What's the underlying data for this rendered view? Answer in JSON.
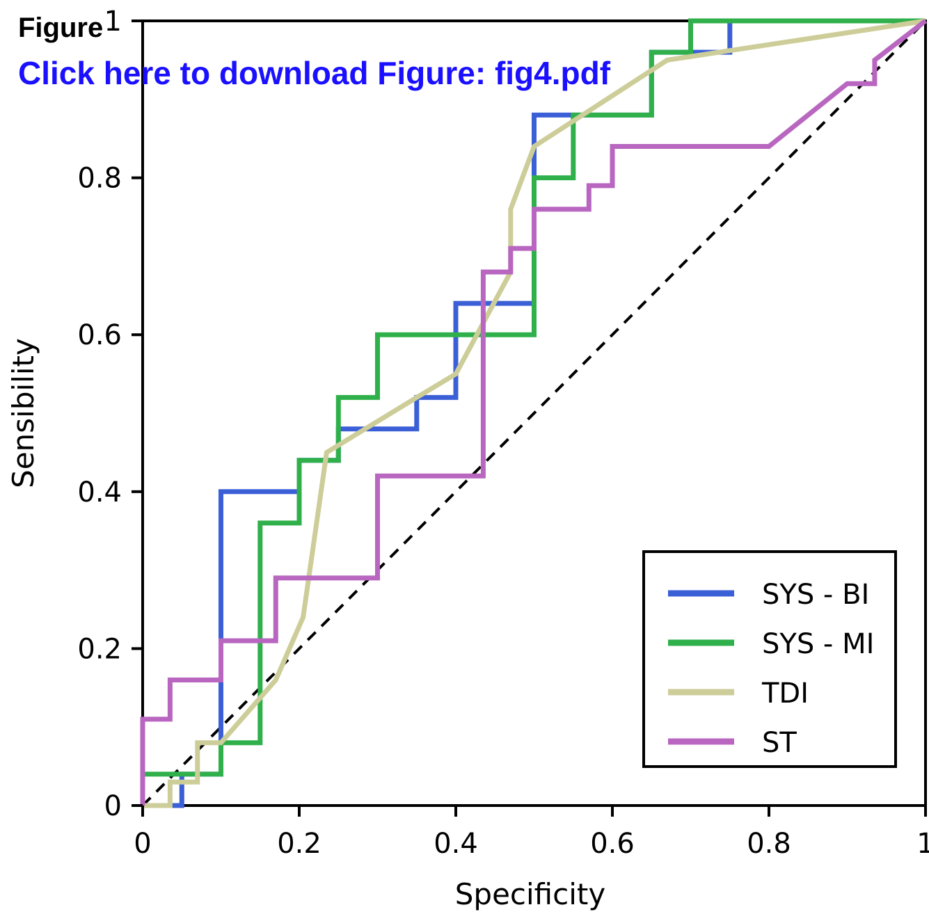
{
  "header": {
    "title": "Figure",
    "link": "Click here to download Figure: fig4.pdf"
  },
  "chart_data": {
    "type": "line",
    "title": "",
    "xlabel": "Specificity",
    "ylabel": "Sensibility",
    "xlim": [
      0,
      1
    ],
    "ylim": [
      0,
      1
    ],
    "xticks": [
      "0",
      "0.2",
      "0.4",
      "0.6",
      "0.8",
      "1"
    ],
    "yticks": [
      "0",
      "0.2",
      "0.4",
      "0.6",
      "0.8",
      "1"
    ],
    "grid": false,
    "legend_position": "bottom-right",
    "reference_line": {
      "style": "dashed",
      "color": "#000000",
      "x": [
        0,
        1
      ],
      "y": [
        0,
        1
      ]
    },
    "series": [
      {
        "name": "SYS - BI",
        "color": "#3b5fd6",
        "x": [
          0,
          0.05,
          0.05,
          0.1,
          0.1,
          0.2,
          0.2,
          0.25,
          0.25,
          0.35,
          0.35,
          0.4,
          0.4,
          0.5,
          0.5,
          0.55,
          0.55,
          0.65,
          0.65,
          0.75,
          0.75,
          1
        ],
        "y": [
          0,
          0,
          0.04,
          0.04,
          0.4,
          0.4,
          0.44,
          0.44,
          0.48,
          0.48,
          0.52,
          0.52,
          0.64,
          0.64,
          0.88,
          0.88,
          0.88,
          0.88,
          0.96,
          0.96,
          1,
          1
        ]
      },
      {
        "name": "SYS - MI",
        "color": "#2fb04a",
        "x": [
          0,
          0,
          0.1,
          0.1,
          0.15,
          0.15,
          0.2,
          0.2,
          0.25,
          0.25,
          0.3,
          0.3,
          0.5,
          0.5,
          0.55,
          0.55,
          0.65,
          0.65,
          0.7,
          0.7,
          1
        ],
        "y": [
          0,
          0.04,
          0.04,
          0.08,
          0.08,
          0.36,
          0.36,
          0.44,
          0.44,
          0.52,
          0.52,
          0.6,
          0.6,
          0.8,
          0.8,
          0.88,
          0.88,
          0.96,
          0.96,
          1,
          1
        ]
      },
      {
        "name": "TDI",
        "color": "#cdcd99",
        "x": [
          0,
          0.035,
          0.035,
          0.07,
          0.07,
          0.1,
          0.17,
          0.205,
          0.235,
          0.35,
          0.4,
          0.47,
          0.47,
          0.5,
          0.67,
          1
        ],
        "y": [
          0,
          0,
          0.03,
          0.03,
          0.08,
          0.08,
          0.16,
          0.24,
          0.45,
          0.52,
          0.55,
          0.68,
          0.76,
          0.84,
          0.95,
          1
        ]
      },
      {
        "name": "ST",
        "color": "#b866c0",
        "x": [
          0,
          0,
          0.035,
          0.035,
          0.1,
          0.1,
          0.17,
          0.17,
          0.3,
          0.3,
          0.435,
          0.435,
          0.47,
          0.47,
          0.5,
          0.5,
          0.57,
          0.57,
          0.6,
          0.6,
          0.8,
          0.9,
          0.935,
          0.935,
          1
        ],
        "y": [
          0,
          0.11,
          0.11,
          0.16,
          0.16,
          0.21,
          0.21,
          0.29,
          0.29,
          0.42,
          0.42,
          0.68,
          0.68,
          0.71,
          0.71,
          0.76,
          0.76,
          0.79,
          0.79,
          0.84,
          0.84,
          0.92,
          0.92,
          0.95,
          1
        ]
      }
    ]
  }
}
